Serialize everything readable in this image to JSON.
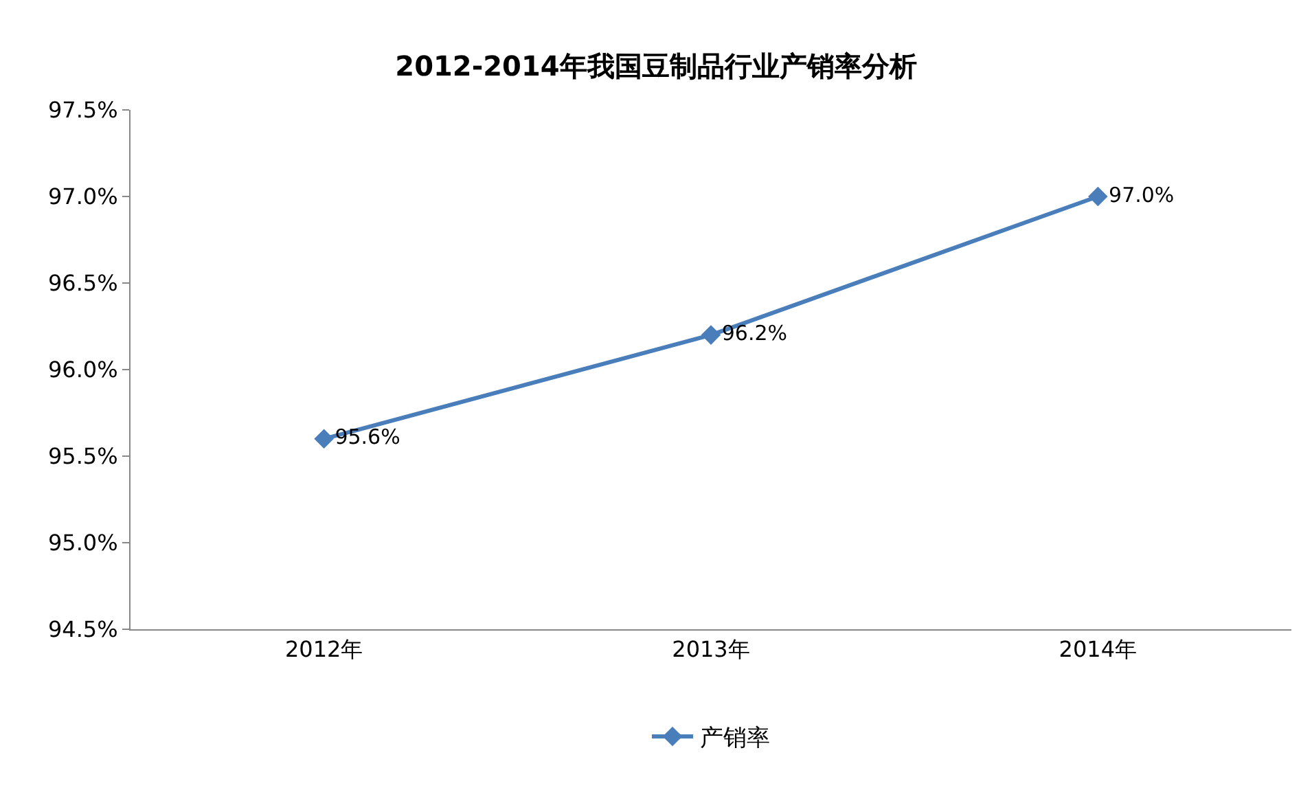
{
  "chart_data": {
    "type": "line",
    "title": "2012-2014年我国豆制品行业产销率分析",
    "categories": [
      "2012年",
      "2013年",
      "2014年"
    ],
    "series": [
      {
        "name": "产销率",
        "color": "#4a7ebb",
        "values": [
          95.6,
          96.2,
          97.0
        ],
        "value_labels": [
          "95.6%",
          "96.2%",
          "97.0%"
        ]
      }
    ],
    "ylim": [
      94.5,
      97.5
    ],
    "yticks": [
      {
        "value": 94.5,
        "label": "94.5%"
      },
      {
        "value": 95.0,
        "label": "95.0%"
      },
      {
        "value": 95.5,
        "label": "95.5%"
      },
      {
        "value": 96.0,
        "label": "96.0%"
      },
      {
        "value": 96.5,
        "label": "96.5%"
      },
      {
        "value": 97.0,
        "label": "97.0%"
      },
      {
        "value": 97.5,
        "label": "97.5%"
      }
    ],
    "grid": false,
    "legend": "bottom",
    "marker": "diamond",
    "line_style": "solid"
  }
}
